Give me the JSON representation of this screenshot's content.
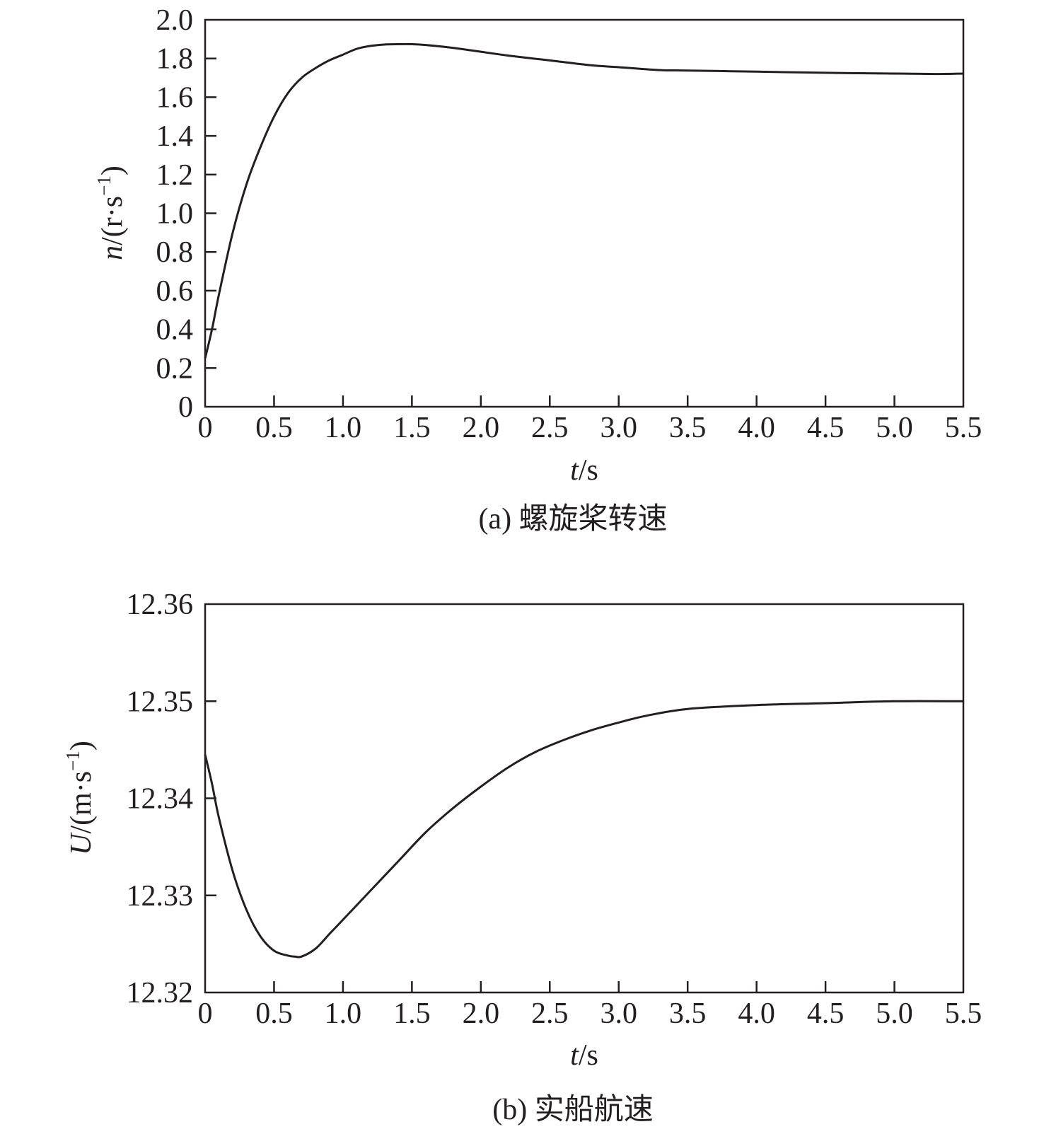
{
  "chart_data": [
    {
      "type": "line",
      "caption": "(a) 螺旋桨转速",
      "xlabel": {
        "var": "t",
        "unit": "/s"
      },
      "ylabel": {
        "var": "n",
        "unit": "/(r·s",
        "exp": "−1",
        "close": ")"
      },
      "xlim": [
        0,
        5.5
      ],
      "ylim": [
        0,
        2.0
      ],
      "x_ticks": [
        "0",
        "0.5",
        "1.0",
        "1.5",
        "2.0",
        "2.5",
        "3.0",
        "3.5",
        "4.0",
        "4.5",
        "5.0",
        "5.5"
      ],
      "y_ticks": [
        "0",
        "0.2",
        "0.4",
        "0.6",
        "0.8",
        "1.0",
        "1.2",
        "1.4",
        "1.6",
        "1.8",
        "2.0"
      ],
      "grid": false,
      "series": [
        {
          "color": "#231f20",
          "x": [
            0.0,
            0.05,
            0.1,
            0.2,
            0.3,
            0.4,
            0.5,
            0.6,
            0.7,
            0.8,
            0.9,
            1.0,
            1.1,
            1.2,
            1.3,
            1.4,
            1.5,
            1.6,
            1.8,
            2.0,
            2.2,
            2.5,
            2.8,
            3.0,
            3.3,
            3.5,
            4.0,
            4.5,
            5.0,
            5.3,
            5.5
          ],
          "y": [
            0.25,
            0.4,
            0.58,
            0.9,
            1.15,
            1.34,
            1.5,
            1.62,
            1.7,
            1.75,
            1.79,
            1.82,
            1.85,
            1.865,
            1.872,
            1.874,
            1.874,
            1.87,
            1.855,
            1.835,
            1.815,
            1.79,
            1.765,
            1.755,
            1.74,
            1.738,
            1.732,
            1.726,
            1.722,
            1.72,
            1.722
          ]
        }
      ]
    },
    {
      "type": "line",
      "caption": "(b) 实船航速",
      "xlabel": {
        "var": "t",
        "unit": "/s"
      },
      "ylabel": {
        "var": "U",
        "unit": "/(m·s",
        "exp": "−1",
        "close": ")"
      },
      "xlim": [
        0,
        5.5
      ],
      "ylim": [
        12.32,
        12.36
      ],
      "x_ticks": [
        "0",
        "0.5",
        "1.0",
        "1.5",
        "2.0",
        "2.5",
        "3.0",
        "3.5",
        "4.0",
        "4.5",
        "5.0",
        "5.5"
      ],
      "y_ticks": [
        "12.32",
        "12.33",
        "12.34",
        "12.35",
        "12.36"
      ],
      "grid": false,
      "series": [
        {
          "color": "#231f20",
          "x": [
            0.0,
            0.05,
            0.1,
            0.2,
            0.3,
            0.4,
            0.5,
            0.6,
            0.65,
            0.7,
            0.8,
            0.9,
            1.0,
            1.2,
            1.4,
            1.6,
            1.8,
            2.0,
            2.2,
            2.4,
            2.6,
            2.8,
            3.0,
            3.2,
            3.5,
            4.0,
            4.5,
            5.0,
            5.5
          ],
          "y": [
            12.3445,
            12.3415,
            12.338,
            12.3325,
            12.3285,
            12.3258,
            12.3243,
            12.3238,
            12.3237,
            12.3237,
            12.3245,
            12.326,
            12.3275,
            12.3305,
            12.3335,
            12.3365,
            12.339,
            12.3412,
            12.3432,
            12.3448,
            12.346,
            12.347,
            12.3478,
            12.3485,
            12.3492,
            12.3496,
            12.3498,
            12.35,
            12.35
          ]
        }
      ]
    }
  ]
}
